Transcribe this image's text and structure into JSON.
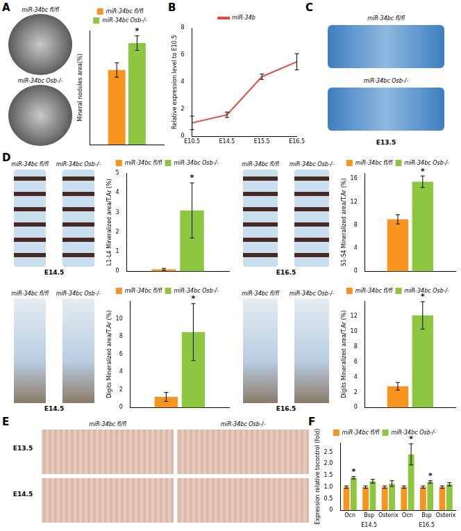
{
  "panels": [
    {
      "label": "A",
      "images": [
        "miR-34bc fl/fl",
        "miR-34bc Osb-/-"
      ]
    },
    {
      "label": "B"
    },
    {
      "label": "C",
      "images": [
        "miR-34bc fl/fl",
        "miR-34bc Osb-/-"
      ],
      "stage": "E13.5"
    },
    {
      "label": "D",
      "images": [
        {
          "captions": [
            "miR-34bc fl/fl",
            "miR-34bc Osb-/-"
          ],
          "stage": "E14.5"
        },
        {
          "captions": [
            "miR-34bc fl/fl",
            "miR-34bc Osb-/-"
          ],
          "stage": "E16.5"
        },
        {
          "captions": [
            "miR-34bc fl/fl",
            "miR-34bc Osb-/-"
          ],
          "stage": "E14.5"
        },
        {
          "captions": [
            "miR-34bc fl/fl",
            "miR-34bc Osb-/-"
          ],
          "stage": "E16.5"
        }
      ]
    },
    {
      "label": "E",
      "images": [
        "miR-34bc fl/fl",
        "miR-34bc Osb-/-"
      ],
      "rows": [
        "E13.5",
        "E14.5"
      ]
    },
    {
      "label": "F"
    }
  ],
  "chart_data": [
    {
      "type": "bar",
      "y_label": "Mineral nodules area(%)",
      "categories": [
        null
      ],
      "ylim": [
        0,
        55
      ],
      "yticks": [
        0,
        10,
        20,
        30,
        40,
        50
      ],
      "tick_labels": false,
      "grid": false,
      "legend": "top",
      "series": [
        {
          "name": "miR-34bc fl/fl",
          "color": "#f7941d",
          "values": [
            36
          ],
          "errors": [
            3.5
          ],
          "annotations": [
            null
          ]
        },
        {
          "name": "miR-34bc Osb-/-",
          "color": "#8dc63f",
          "values": [
            49
          ],
          "errors": [
            3.5
          ],
          "annotations": [
            "*"
          ]
        }
      ]
    },
    {
      "type": "line",
      "y_label": "Relative expression level to E10.5",
      "categories": [
        "E10.5",
        "E14.5",
        "E15.5",
        "E16.5"
      ],
      "ylim": [
        0,
        8
      ],
      "yticks": [
        0,
        2,
        4,
        6,
        8
      ],
      "grid": false,
      "legend": "top",
      "series": [
        {
          "name": "miR-34b",
          "color": "#e8453c",
          "marker": "none",
          "values": [
            1.0,
            1.6,
            4.4,
            5.5
          ],
          "errors": [
            0.5,
            0.2,
            0.2,
            0.6
          ]
        }
      ]
    },
    {
      "type": "bar",
      "y_label": "L1-L4 Mineralized area/T.Ar (%)",
      "categories": [
        null
      ],
      "ylim": [
        0,
        5
      ],
      "yticks": [
        0,
        1,
        2,
        3,
        4,
        5
      ],
      "grid": false,
      "legend": "top",
      "series": [
        {
          "name": "miR-34bc fl/fl",
          "color": "#f7941d",
          "values": [
            0.1
          ],
          "errors": [
            0.05
          ],
          "annotations": [
            null
          ]
        },
        {
          "name": "miR-34bc Osb-/-",
          "color": "#8dc63f",
          "values": [
            3.1
          ],
          "errors": [
            1.4
          ],
          "annotations": [
            "*"
          ]
        }
      ]
    },
    {
      "type": "bar",
      "y_label": "S1-S4 Mineralized area/T.Ar (%)",
      "categories": [
        null
      ],
      "ylim": [
        0,
        17
      ],
      "yticks": [
        0,
        4,
        8,
        12,
        16
      ],
      "grid": false,
      "legend": "top",
      "series": [
        {
          "name": "miR-34bc fl/fl",
          "color": "#f7941d",
          "values": [
            9.0
          ],
          "errors": [
            0.8
          ],
          "annotations": [
            null
          ]
        },
        {
          "name": "miR-34bc Osb-/-",
          "color": "#8dc63f",
          "values": [
            15.5
          ],
          "errors": [
            1.0
          ],
          "annotations": [
            "*"
          ]
        }
      ]
    },
    {
      "type": "bar",
      "y_label": "Digits Mineralized area/T.Ar (%)",
      "categories": [
        null
      ],
      "ylim": [
        0,
        12
      ],
      "yticks": [
        0,
        2,
        4,
        6,
        8,
        10
      ],
      "grid": false,
      "legend": "top",
      "series": [
        {
          "name": "miR-34bc fl/fl",
          "color": "#f7941d",
          "values": [
            1.2
          ],
          "errors": [
            0.5
          ],
          "annotations": [
            null
          ]
        },
        {
          "name": "miR-34bc Osb-/-",
          "color": "#8dc63f",
          "values": [
            8.5
          ],
          "errors": [
            3.2
          ],
          "annotations": [
            "*"
          ]
        }
      ]
    },
    {
      "type": "bar",
      "y_label": "Digits Mineralized area/T.Ar (%)",
      "categories": [
        null
      ],
      "ylim": [
        0,
        14
      ],
      "yticks": [
        0,
        2,
        4,
        6,
        8,
        10,
        12
      ],
      "grid": false,
      "legend": "top",
      "series": [
        {
          "name": "miR-34bc fl/fl",
          "color": "#f7941d",
          "values": [
            2.8
          ],
          "errors": [
            0.5
          ],
          "annotations": [
            null
          ]
        },
        {
          "name": "miR-34bc Osb-/-",
          "color": "#8dc63f",
          "values": [
            12.1
          ],
          "errors": [
            1.8
          ],
          "annotations": [
            "*"
          ]
        }
      ]
    },
    {
      "type": "bar",
      "y_label": "Expression relative tocontrol (fold)",
      "categories": [
        "Ocn",
        "Bsp",
        "Osterix",
        "Ocn",
        "Bsp",
        "Osterix"
      ],
      "groups": [
        "E14.5",
        "E16.5"
      ],
      "ylim": [
        0,
        2.9
      ],
      "yticks": [
        0,
        {
          "value": 0.5,
          "label": "0.5"
        },
        {
          "value": 1,
          "label": "1.0"
        },
        {
          "value": 1.5,
          "label": "1.5"
        },
        {
          "value": 2,
          "label": "2.0"
        },
        {
          "value": 2.5,
          "label": "2.5"
        }
      ],
      "grid": false,
      "legend": "top",
      "series": [
        {
          "name": "miR-34bc fl/fl",
          "color": "#f7941d",
          "values": [
            1.0,
            1.0,
            1.0,
            1.0,
            1.0,
            1.0
          ],
          "errors": [
            0.05,
            0.05,
            0.05,
            0.05,
            0.05,
            0.05
          ],
          "annotations": [
            null,
            null,
            null,
            null,
            null,
            null
          ]
        },
        {
          "name": "miR-34bc Osb-/-",
          "color": "#8dc63f",
          "values": [
            1.4,
            1.25,
            1.15,
            2.4,
            1.22,
            1.12
          ],
          "errors": [
            0.05,
            0.08,
            0.12,
            0.45,
            0.05,
            0.07
          ],
          "annotations": [
            "*",
            null,
            null,
            "*",
            "*",
            null
          ]
        }
      ]
    }
  ]
}
